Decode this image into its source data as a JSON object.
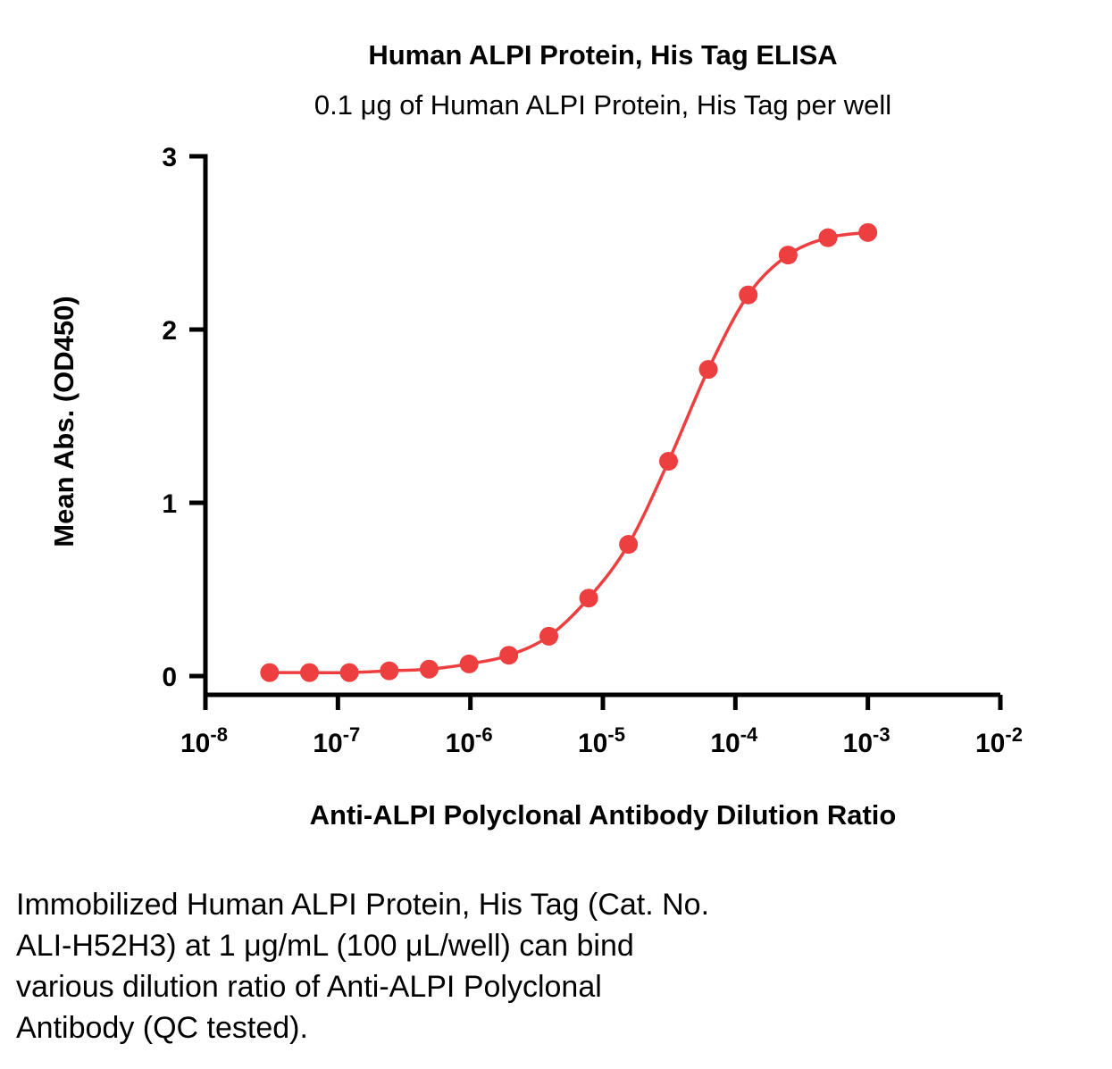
{
  "chart_data": {
    "type": "line",
    "title": "Human ALPI Protein, His Tag ELISA",
    "subtitle": "0.1 μg of Human ALPI Protein, His Tag per well",
    "xlabel": "Anti-ALPI Polyclonal Antibody Dilution Ratio",
    "ylabel": "Mean Abs. (OD450)",
    "x_scale": "log10",
    "xlim_exponents": [
      -8,
      -2
    ],
    "ylim": [
      0,
      3
    ],
    "x_tick_exponents": [
      -8,
      -7,
      -6,
      -5,
      -4,
      -3,
      -2
    ],
    "y_ticks": [
      0,
      1,
      2,
      3
    ],
    "grid": false,
    "legend": "none",
    "series": [
      {
        "name": "Anti-ALPI Polyclonal Antibody",
        "color": "#ED3F3F",
        "marker": "circle",
        "x": [
          3.05e-08,
          6.1e-08,
          1.22e-07,
          2.44e-07,
          4.88e-07,
          9.77e-07,
          1.95e-06,
          3.91e-06,
          7.81e-06,
          1.56e-05,
          3.13e-05,
          6.25e-05,
          0.000125,
          0.00025,
          0.0005,
          0.001
        ],
        "y": [
          0.02,
          0.02,
          0.02,
          0.03,
          0.04,
          0.07,
          0.12,
          0.23,
          0.45,
          0.76,
          1.24,
          1.77,
          2.2,
          2.43,
          2.53,
          2.56
        ]
      }
    ]
  },
  "caption": {
    "lines": [
      "Immobilized Human ALPI Protein, His Tag (Cat. No.",
      "ALI-H52H3) at 1 μg/mL (100 μL/well) can bind",
      "various dilution ratio of Anti-ALPI Polyclonal",
      "Antibody (QC tested)."
    ]
  }
}
